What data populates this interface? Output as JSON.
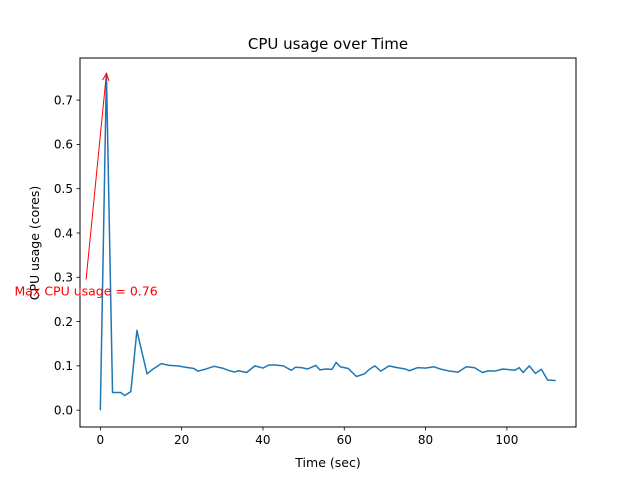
{
  "chart_data": {
    "type": "line",
    "title": "CPU usage over Time",
    "xlabel": "Time (sec)",
    "ylabel": "CPU usage (cores)",
    "xlim": [
      -5,
      117
    ],
    "ylim": [
      -0.038,
      0.795
    ],
    "xticks": [
      0,
      20,
      40,
      60,
      80,
      100
    ],
    "yticks": [
      0.0,
      0.1,
      0.2,
      0.3,
      0.4,
      0.5,
      0.6,
      0.7
    ],
    "grid": false,
    "series": [
      {
        "name": "CPU usage",
        "color": "#1f77b4",
        "x": [
          0,
          1.5,
          3,
          5,
          6,
          7.5,
          9,
          10,
          11.5,
          13,
          15,
          17,
          19,
          21,
          23,
          24,
          26,
          28,
          30,
          31.5,
          33,
          34,
          36,
          38,
          40,
          41.5,
          43,
          45,
          47,
          48,
          49.5,
          51,
          53,
          54,
          55.5,
          57,
          58,
          59,
          61,
          63,
          65,
          66,
          67.5,
          69,
          71,
          73,
          75,
          76,
          78,
          80,
          82,
          84,
          86,
          88,
          90,
          92,
          94,
          95.5,
          97,
          99,
          101,
          102,
          103,
          104,
          105.5,
          107,
          108.5,
          110,
          112
        ],
        "y": [
          0.0,
          0.76,
          0.04,
          0.04,
          0.033,
          0.042,
          0.18,
          0.14,
          0.082,
          0.093,
          0.105,
          0.101,
          0.1,
          0.097,
          0.094,
          0.088,
          0.093,
          0.099,
          0.095,
          0.09,
          0.086,
          0.089,
          0.085,
          0.1,
          0.095,
          0.102,
          0.102,
          0.1,
          0.09,
          0.097,
          0.096,
          0.093,
          0.101,
          0.091,
          0.093,
          0.092,
          0.108,
          0.098,
          0.094,
          0.076,
          0.082,
          0.091,
          0.1,
          0.088,
          0.1,
          0.096,
          0.093,
          0.089,
          0.096,
          0.095,
          0.098,
          0.092,
          0.088,
          0.086,
          0.098,
          0.096,
          0.085,
          0.089,
          0.088,
          0.093,
          0.091,
          0.09,
          0.096,
          0.085,
          0.1,
          0.083,
          0.092,
          0.068,
          0.067
        ]
      }
    ],
    "annotations": [
      {
        "text": "Max CPU usage = 0.76",
        "xy": [
          1.5,
          0.76
        ],
        "xytext": [
          -3.5,
          0.295
        ],
        "color": "#ff0000"
      }
    ]
  }
}
